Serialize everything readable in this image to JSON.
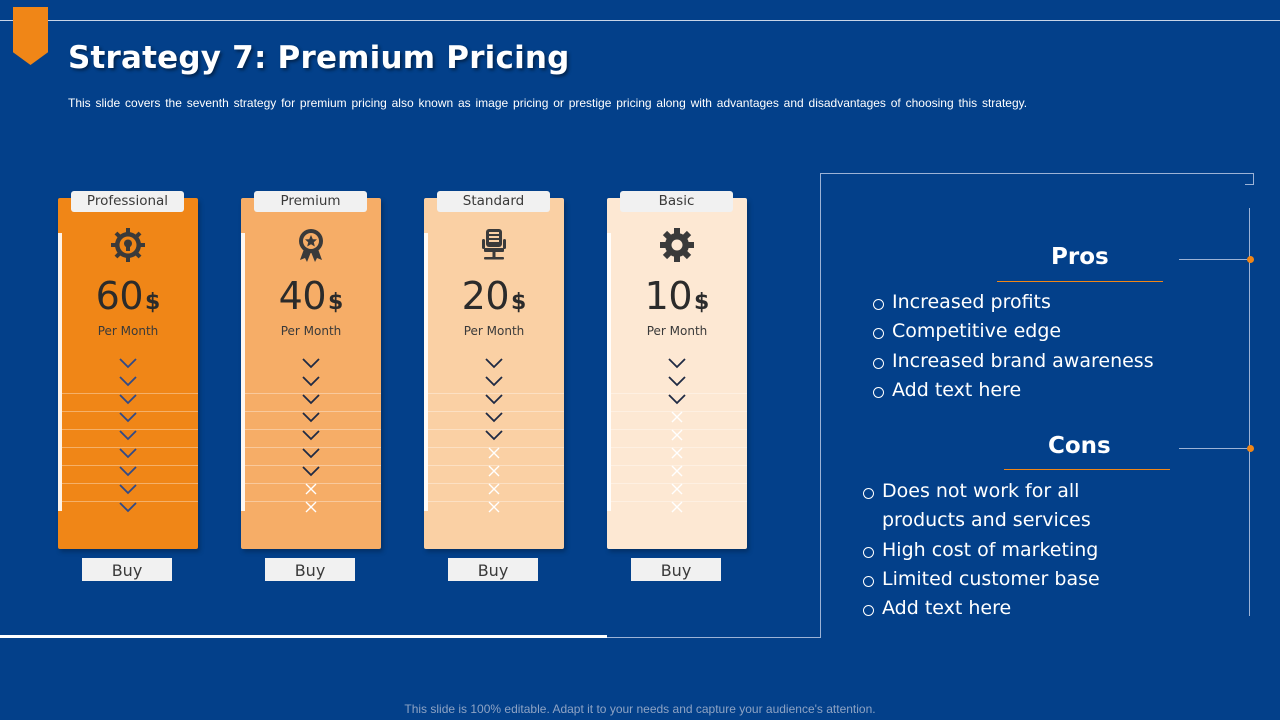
{
  "title": "Strategy 7: Premium Pricing",
  "subtitle": "This slide covers the seventh strategy for premium pricing also known as image pricing or prestige pricing along with advantages and disadvantages of choosing this strategy.",
  "colors": {
    "background": "#03408a",
    "accent": "#f08617"
  },
  "plans": [
    {
      "name": "Professional",
      "price": "60",
      "currency": "$",
      "period": "Per Month",
      "icon": "gear-bulb-icon",
      "color": "#f08617",
      "marks": [
        "check",
        "check",
        "check",
        "check",
        "check",
        "check",
        "check",
        "check",
        "check"
      ],
      "buy": "Buy"
    },
    {
      "name": "Premium",
      "price": "40",
      "currency": "$",
      "period": "Per Month",
      "icon": "award-badge-icon",
      "color": "#f6ad67",
      "marks": [
        "check",
        "check",
        "check",
        "check",
        "check",
        "check",
        "check",
        "cross",
        "cross"
      ],
      "buy": "Buy"
    },
    {
      "name": "Standard",
      "price": "20",
      "currency": "$",
      "period": "Per Month",
      "icon": "office-chair-icon",
      "color": "#fad0a4",
      "marks": [
        "check",
        "check",
        "check",
        "check",
        "check",
        "cross",
        "cross",
        "cross",
        "cross"
      ],
      "buy": "Buy"
    },
    {
      "name": "Basic",
      "price": "10",
      "currency": "$",
      "period": "Per Month",
      "icon": "gear-icon",
      "color": "#fde8d3",
      "marks": [
        "check",
        "check",
        "check",
        "cross",
        "cross",
        "cross",
        "cross",
        "cross",
        "cross"
      ],
      "buy": "Buy"
    }
  ],
  "pros": {
    "title": "Pros",
    "items": [
      "Increased profits",
      "Competitive edge",
      "Increased brand awareness",
      "Add text here"
    ]
  },
  "cons": {
    "title": "Cons",
    "items": [
      "Does not work for all products and services",
      "High cost of marketing",
      "Limited customer base",
      "Add text here"
    ]
  },
  "footer": "This slide is 100% editable. Adapt it to your needs and capture your audience's attention."
}
